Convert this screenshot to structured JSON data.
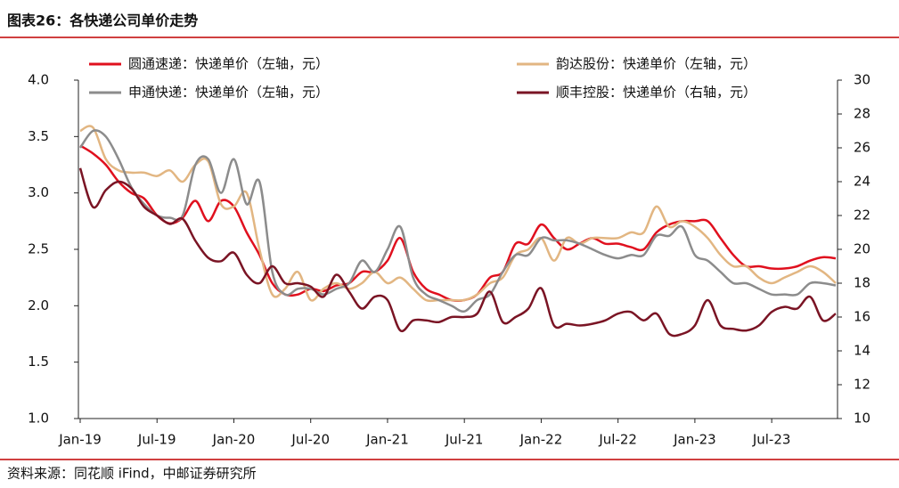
{
  "chart_data": {
    "type": "line",
    "title": "图表26：各快递公司单价走势",
    "source": "资料来源：同花顺 iFind，中邮证券研究所",
    "categories": [
      "Jan-19",
      null,
      null,
      null,
      null,
      null,
      "Jul-19",
      null,
      null,
      null,
      null,
      null,
      "Jan-20",
      null,
      null,
      null,
      null,
      null,
      "Jul-20",
      null,
      null,
      null,
      null,
      null,
      "Jan-21",
      null,
      null,
      null,
      null,
      null,
      "Jul-21",
      null,
      null,
      null,
      null,
      null,
      "Jan-22",
      null,
      null,
      null,
      null,
      null,
      "Jul-22",
      null,
      null,
      null,
      null,
      null,
      "Jan-23",
      null,
      null,
      null,
      null,
      null,
      "Jul-23",
      null,
      null,
      null,
      null,
      null
    ],
    "ylim": [
      1,
      4
    ],
    "yticks": [
      {
        "value": 1,
        "label": "1.0"
      },
      {
        "value": 1.5,
        "label": "1.5"
      },
      {
        "value": 2,
        "label": "2.0"
      },
      {
        "value": 2.5,
        "label": "2.5"
      },
      {
        "value": 3,
        "label": "3.0"
      },
      {
        "value": 3.5,
        "label": "3.5"
      },
      {
        "value": 4,
        "label": "4.0"
      }
    ],
    "y2lim": [
      10,
      30
    ],
    "y2ticks": [
      10,
      12,
      14,
      16,
      18,
      20,
      22,
      24,
      26,
      28,
      30
    ],
    "series": [
      {
        "name": "圆通速递：快递单价（左轴，元）",
        "color": "#e0101e",
        "values": [
          3.42,
          3.35,
          3.25,
          3.1,
          3.0,
          2.95,
          2.8,
          2.73,
          2.78,
          2.93,
          2.75,
          2.93,
          2.88,
          2.65,
          2.45,
          2.2,
          2.1,
          2.1,
          2.15,
          2.13,
          2.18,
          2.2,
          2.3,
          2.3,
          2.4,
          2.6,
          2.3,
          2.15,
          2.1,
          2.05,
          2.05,
          2.1,
          2.25,
          2.3,
          2.55,
          2.55,
          2.72,
          2.6,
          2.5,
          2.55,
          2.6,
          2.55,
          2.55,
          2.52,
          2.5,
          2.65,
          2.72,
          2.75,
          2.75,
          2.75,
          2.6,
          2.45,
          2.35,
          2.35,
          2.33,
          2.33,
          2.35,
          2.4,
          2.43,
          2.42
        ]
      },
      {
        "name": "韵达股份：快递单价（左轴，元）",
        "color": "#e2b682",
        "values": [
          3.55,
          3.58,
          3.3,
          3.2,
          3.18,
          3.18,
          3.15,
          3.2,
          3.1,
          3.25,
          3.28,
          2.9,
          2.88,
          3.0,
          2.5,
          2.1,
          2.15,
          2.3,
          2.05,
          2.15,
          2.2,
          2.15,
          2.2,
          2.3,
          2.2,
          2.25,
          2.15,
          2.05,
          2.05,
          2.05,
          2.05,
          2.1,
          2.2,
          2.25,
          2.45,
          2.5,
          2.6,
          2.4,
          2.6,
          2.55,
          2.6,
          2.6,
          2.6,
          2.65,
          2.65,
          2.88,
          2.7,
          2.75,
          2.7,
          2.6,
          2.45,
          2.35,
          2.35,
          2.25,
          2.2,
          2.25,
          2.3,
          2.35,
          2.3,
          2.2
        ]
      },
      {
        "name": "申通快递：快递单价（左轴，元）",
        "color": "#8c8c8c",
        "values": [
          3.4,
          3.55,
          3.5,
          3.3,
          3.05,
          2.9,
          2.8,
          2.78,
          2.8,
          3.25,
          3.3,
          3.0,
          3.3,
          2.9,
          3.1,
          2.3,
          2.1,
          2.15,
          2.15,
          2.1,
          2.15,
          2.2,
          2.4,
          2.3,
          2.5,
          2.7,
          2.25,
          2.1,
          2.05,
          2.0,
          1.95,
          2.05,
          2.1,
          2.3,
          2.45,
          2.45,
          2.6,
          2.58,
          2.58,
          2.55,
          2.5,
          2.45,
          2.42,
          2.45,
          2.45,
          2.62,
          2.62,
          2.7,
          2.45,
          2.4,
          2.3,
          2.2,
          2.2,
          2.15,
          2.1,
          2.1,
          2.1,
          2.2,
          2.2,
          2.18
        ]
      },
      {
        "name": "顺丰控股：快递单价（右轴，元）",
        "color": "#7a1424",
        "axis": "y2",
        "values": [
          24.8,
          22.5,
          23.5,
          24,
          23.6,
          22.5,
          22,
          21.5,
          21.8,
          20.5,
          19.5,
          19.3,
          19.8,
          18.5,
          18,
          19,
          18,
          18,
          17.8,
          17.2,
          18.5,
          17.5,
          16.5,
          17.2,
          17,
          15.2,
          15.8,
          15.8,
          15.7,
          16,
          16,
          16.2,
          17.5,
          15.7,
          16,
          16.5,
          17.7,
          15.5,
          15.6,
          15.5,
          15.6,
          15.8,
          16.2,
          16.3,
          15.8,
          16.2,
          15,
          15,
          15.5,
          17,
          15.5,
          15.3,
          15.2,
          15.5,
          16.3,
          16.6,
          16.5,
          17.2,
          15.8,
          16.2
        ]
      }
    ]
  }
}
